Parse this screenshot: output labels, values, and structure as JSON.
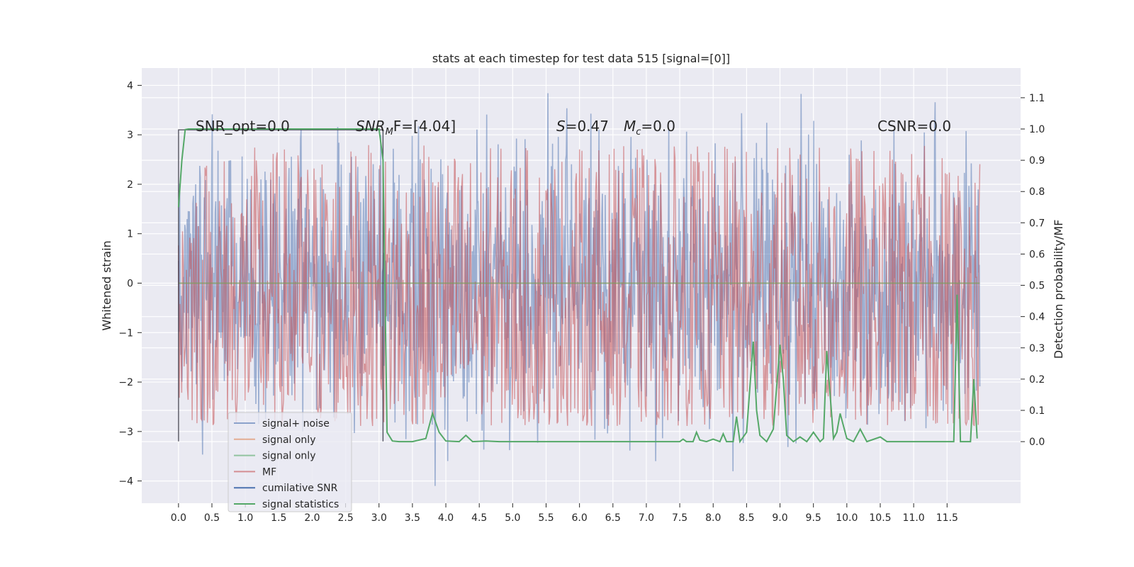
{
  "chart_data": {
    "type": "line",
    "title": "stats at each timestep for test data 515 [signal=[0]]",
    "xlabel": "",
    "ylabel": "Whitened strain",
    "y2label": "Detection probability/MF",
    "xlim": [
      -0.55,
      12.6
    ],
    "ylim": [
      -4.45,
      4.35
    ],
    "y2lim": [
      -0.197,
      1.195
    ],
    "xticks": [
      "0.0",
      "0.5",
      "1.0",
      "1.5",
      "2.0",
      "2.5",
      "3.0",
      "3.5",
      "4.0",
      "4.5",
      "5.0",
      "5.5",
      "6.0",
      "6.5",
      "7.0",
      "7.5",
      "8.0",
      "8.5",
      "9.0",
      "9.5",
      "10.0",
      "10.5",
      "11.0",
      "11.5"
    ],
    "yticks": [
      "4",
      "3",
      "2",
      "1",
      "0",
      "−1",
      "−2",
      "−3",
      "−4"
    ],
    "y2ticks": [
      "1.1",
      "1.0",
      "0.9",
      "0.8",
      "0.7",
      "0.6",
      "0.5",
      "0.4",
      "0.3",
      "0.2",
      "0.1",
      "0.0"
    ],
    "grid": true,
    "legend_placement": "lower-left",
    "annotations": {
      "snr_opt": "SNR_opt=0.0",
      "snr_mf_main": "SNR",
      "snr_mf_sub": "M",
      "snr_mf_rest": "F=[4.04]",
      "s_main": "S",
      "s_rest": "=0.47",
      "mc_main": "M",
      "mc_sub": "c",
      "mc_rest": "=0.0",
      "csnr": "CSNR=0.0"
    },
    "series": [
      {
        "name": "signal+ noise",
        "color": "#4c72b0",
        "amplitude": 1.4,
        "peak_range": [
          -4.1,
          3.95
        ],
        "x_range": [
          0.0,
          11.99
        ]
      },
      {
        "name": "signal only",
        "color": "#dd8452",
        "values": "≈0"
      },
      {
        "name": "signal only",
        "color": "#55a868",
        "values": "≈0"
      },
      {
        "name": "MF",
        "color": "#c44e52",
        "band": [
          0.0,
          1.0
        ]
      },
      {
        "name": "cumilative SNR",
        "color": "#4c72b0",
        "x": [
          0.0,
          0.0,
          3.06,
          3.06
        ],
        "y": [
          -3.2,
          3.1,
          3.1,
          -3.2
        ]
      },
      {
        "name": "signal statistics",
        "color": "#55a868",
        "axis": "right",
        "x": [
          0.0,
          0.05,
          0.1,
          0.15,
          0.2,
          0.5,
          1.0,
          1.5,
          2.0,
          2.5,
          2.9,
          3.0,
          3.06,
          3.12,
          3.2,
          3.3,
          3.5,
          3.7,
          3.8,
          3.9,
          4.0,
          4.2,
          4.3,
          4.4,
          4.6,
          4.8,
          5.0,
          6.0,
          7.0,
          7.5,
          7.55,
          7.6,
          7.7,
          7.75,
          7.8,
          7.9,
          8.0,
          8.1,
          8.15,
          8.2,
          8.3,
          8.35,
          8.4,
          8.5,
          8.6,
          8.65,
          8.7,
          8.8,
          8.9,
          9.0,
          9.05,
          9.1,
          9.2,
          9.3,
          9.4,
          9.5,
          9.6,
          9.65,
          9.7,
          9.8,
          9.85,
          9.9,
          10.0,
          10.1,
          10.2,
          10.3,
          10.5,
          10.6,
          10.7,
          11.0,
          11.3,
          11.5,
          11.6,
          11.65,
          11.7,
          11.85,
          11.9,
          11.95
        ],
        "y": [
          0.75,
          0.9,
          0.998,
          1.0,
          1.0,
          1.0,
          1.0,
          1.0,
          1.0,
          1.0,
          1.0,
          1.0,
          0.9,
          0.03,
          0.002,
          0.0,
          0.0,
          0.01,
          0.09,
          0.03,
          0.002,
          0.0,
          0.02,
          0.0,
          0.002,
          0.0,
          0.0,
          0.0,
          0.0,
          0.0,
          0.008,
          0.0,
          0.0,
          0.03,
          0.005,
          0.0,
          0.008,
          0.0,
          0.025,
          0.0,
          0.0,
          0.08,
          0.0,
          0.03,
          0.32,
          0.1,
          0.02,
          0.0,
          0.04,
          0.31,
          0.2,
          0.02,
          0.0,
          0.015,
          0.0,
          0.03,
          0.0,
          0.01,
          0.29,
          0.01,
          0.03,
          0.09,
          0.01,
          0.0,
          0.04,
          0.0,
          0.015,
          0.0,
          0.0,
          0.0,
          0.0,
          0.0,
          0.0,
          0.47,
          0.0,
          0.0,
          0.2,
          0.01
        ]
      }
    ]
  }
}
